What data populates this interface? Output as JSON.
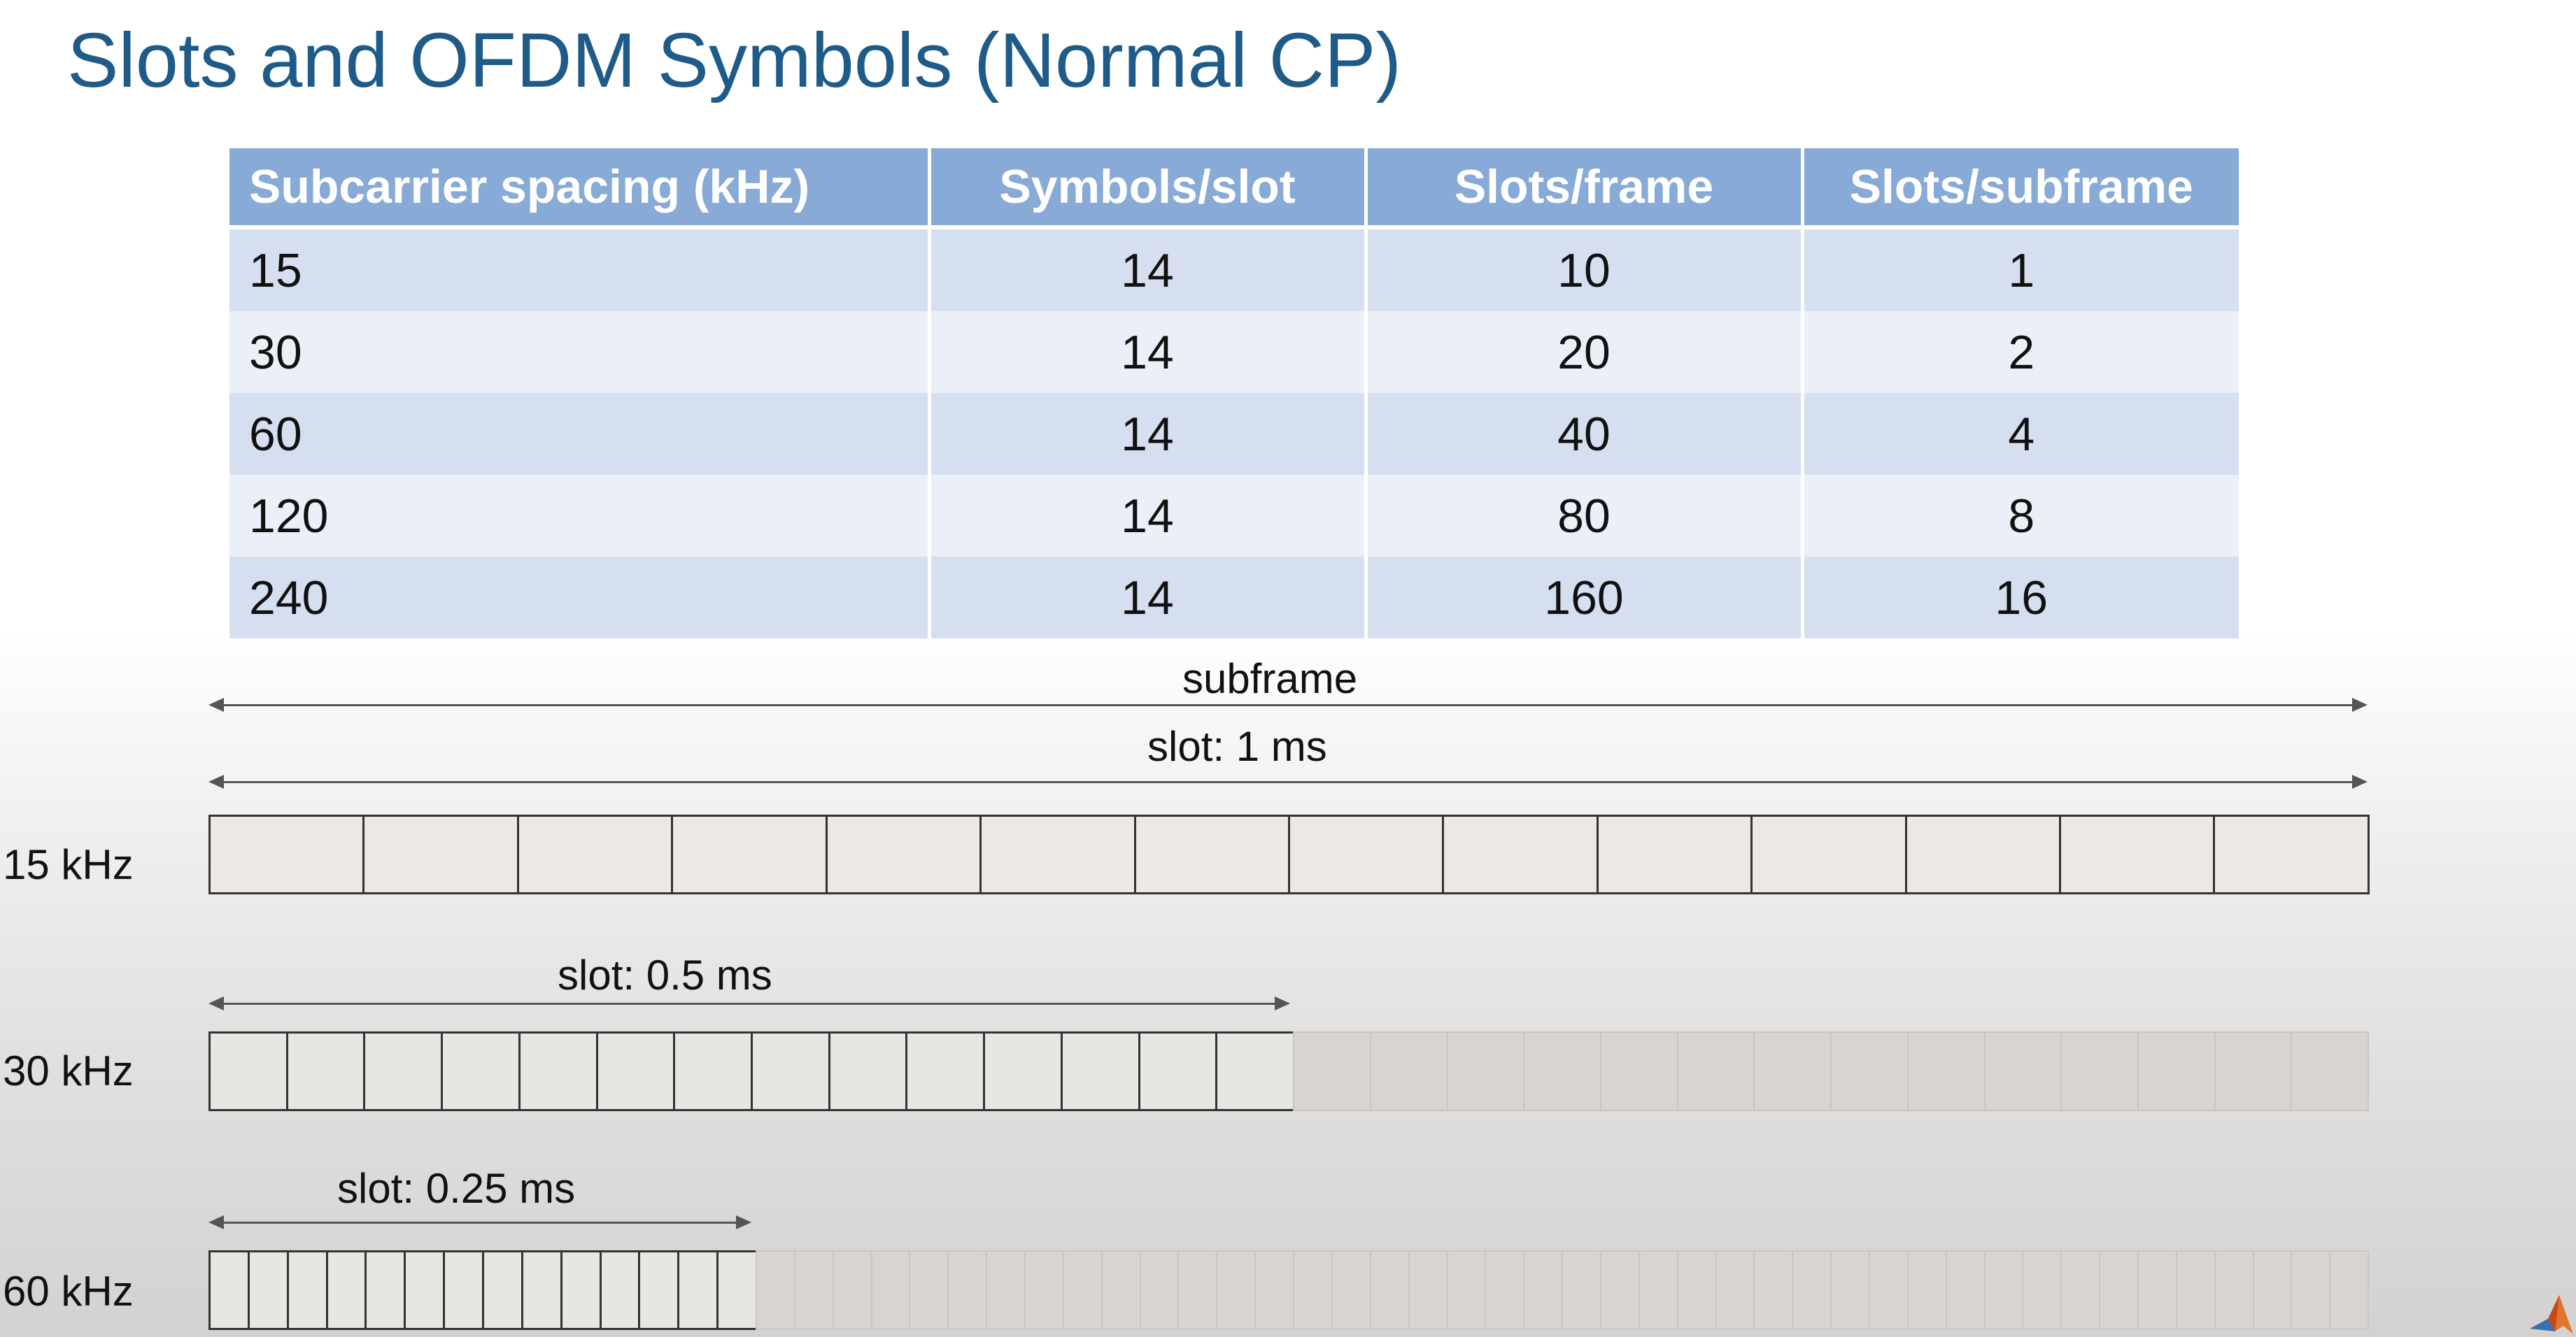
{
  "title": "Slots and OFDM Symbols (Normal CP)",
  "table": {
    "headers": [
      "Subcarrier spacing (kHz)",
      "Symbols/slot",
      "Slots/frame",
      "Slots/subframe"
    ],
    "rows": [
      [
        "15",
        "14",
        "10",
        "1"
      ],
      [
        "30",
        "14",
        "20",
        "2"
      ],
      [
        "60",
        "14",
        "40",
        "4"
      ],
      [
        "120",
        "14",
        "80",
        "8"
      ],
      [
        "240",
        "14",
        "160",
        "16"
      ]
    ]
  },
  "diagram": {
    "subframe_label": "subframe",
    "rows": [
      {
        "spacing_label": "15 kHz",
        "slot_label": "slot: 1 ms",
        "symbols_highlighted": 14,
        "symbols_total": 14
      },
      {
        "spacing_label": "30 kHz",
        "slot_label": "slot: 0.5 ms",
        "symbols_highlighted": 14,
        "symbols_total": 28
      },
      {
        "spacing_label": "60 kHz",
        "slot_label": "slot: 0.25 ms",
        "symbols_highlighted": 14,
        "symbols_total": 56
      }
    ]
  },
  "colors": {
    "title": "#1f5b88",
    "table_header": "#87aad6",
    "row_odd": "#d6dff0",
    "row_even": "#ebeff7"
  },
  "icons": {
    "corner_logo": "matlab-logo-icon"
  }
}
